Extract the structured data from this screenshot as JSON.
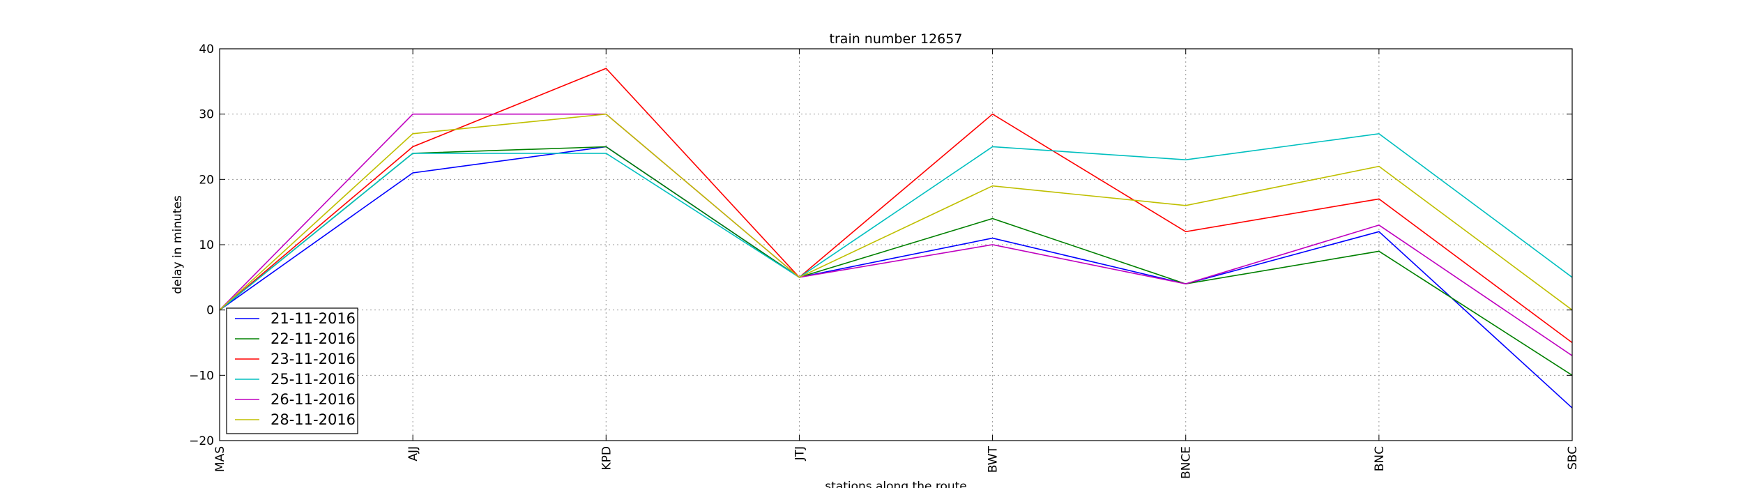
{
  "chart_data": {
    "type": "line",
    "title": "train number 12657",
    "xlabel": "stations along the route",
    "ylabel": "delay in minutes",
    "categories": [
      "MAS",
      "AJJ",
      "KPD",
      "JTJ",
      "BWT",
      "BNCE",
      "BNC",
      "SBC"
    ],
    "ylim": [
      -20,
      40
    ],
    "yticks": [
      -20,
      -10,
      0,
      10,
      20,
      30,
      40
    ],
    "grid": true,
    "legend_position": "lower-left",
    "series": [
      {
        "name": "21-11-2016",
        "color": "#0000ff",
        "values": [
          0,
          21,
          25,
          5,
          11,
          4,
          12,
          -15
        ]
      },
      {
        "name": "22-11-2016",
        "color": "#008000",
        "values": [
          0,
          24,
          25,
          5,
          14,
          4,
          9,
          -10
        ]
      },
      {
        "name": "23-11-2016",
        "color": "#ff0000",
        "values": [
          0,
          25,
          37,
          5,
          30,
          12,
          17,
          -5
        ]
      },
      {
        "name": "25-11-2016",
        "color": "#00bfbf",
        "values": [
          0,
          24,
          24,
          5,
          25,
          23,
          27,
          5
        ]
      },
      {
        "name": "26-11-2016",
        "color": "#bf00bf",
        "values": [
          0,
          30,
          30,
          5,
          10,
          4,
          13,
          -7
        ]
      },
      {
        "name": "28-11-2016",
        "color": "#bfbf00",
        "values": [
          0,
          27,
          30,
          5,
          19,
          16,
          22,
          0
        ]
      }
    ]
  }
}
